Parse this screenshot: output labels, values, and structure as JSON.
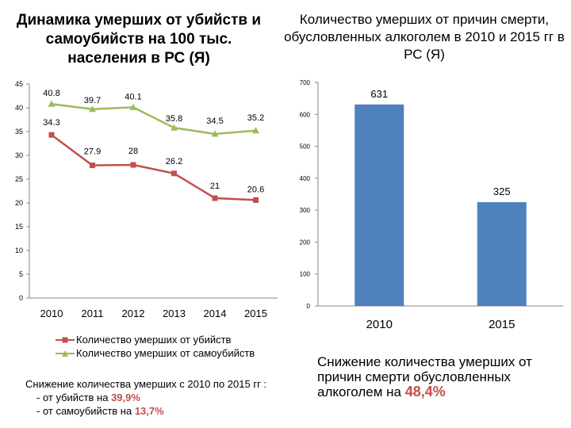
{
  "left_title": "Динамика умерших от убийств и самоубийств на 100 тыс. населения в РС (Я)",
  "right_title": "Количество умерших от причин смерти, обусловленных алкоголем в 2010 и 2015 гг в РС (Я)",
  "chart_data": [
    {
      "type": "line",
      "title": "Динамика умерших от убийств и самоубийств на 100 тыс. населения в РС (Я)",
      "categories": [
        "2010",
        "2011",
        "2012",
        "2013",
        "2014",
        "2015"
      ],
      "series": [
        {
          "name": "Количество умерших от убийств",
          "values": [
            34.3,
            27.9,
            28,
            26.2,
            21,
            20.6
          ],
          "color": "#c0504d",
          "marker": "square"
        },
        {
          "name": "Количество умерших от самоубийств",
          "values": [
            40.8,
            39.7,
            40.1,
            35.8,
            34.5,
            35.2
          ],
          "color": "#9bbb59",
          "marker": "triangle"
        }
      ],
      "data_labels": {
        "murders": [
          "34.3",
          "27.9",
          "28",
          "26.2",
          "21",
          "20.6"
        ],
        "suicides": [
          "40.8",
          "39.7",
          "40.1",
          "35.8",
          "34.5",
          "35.2"
        ]
      },
      "ylim": [
        0,
        45
      ],
      "yticks": [
        "0",
        "5",
        "10",
        "15",
        "20",
        "25",
        "30",
        "35",
        "40",
        "45"
      ],
      "grid": false,
      "legend": "bottom"
    },
    {
      "type": "bar",
      "title": "Количество умерших от причин смерти, обусловленных алкоголем в 2010 и 2015 гг в РС (Я)",
      "categories": [
        "2010",
        "2015"
      ],
      "values": [
        631,
        325
      ],
      "value_labels": [
        "631",
        "325"
      ],
      "color": "#4f81bd",
      "ylim": [
        0,
        700
      ],
      "yticks": [
        "0",
        "100",
        "200",
        "300",
        "400",
        "500",
        "600",
        "700"
      ],
      "grid": false
    }
  ],
  "notes": {
    "left_line1": "Снижение количества умерших с 2010 по 2015 гг :",
    "left_line2_prefix": "- от убийств на ",
    "left_line2_value": "39,9%",
    "left_line3_prefix": "- от самоубийств на ",
    "left_line3_value": "13,7%",
    "right_text": "Снижение количества умерших от причин смерти обусловленных алкоголем на ",
    "right_value": "48,4%"
  },
  "colors": {
    "murders": "#c0504d",
    "suicides": "#9bbb59",
    "bars": "#4f81bd",
    "highlight": "#c0504d"
  }
}
